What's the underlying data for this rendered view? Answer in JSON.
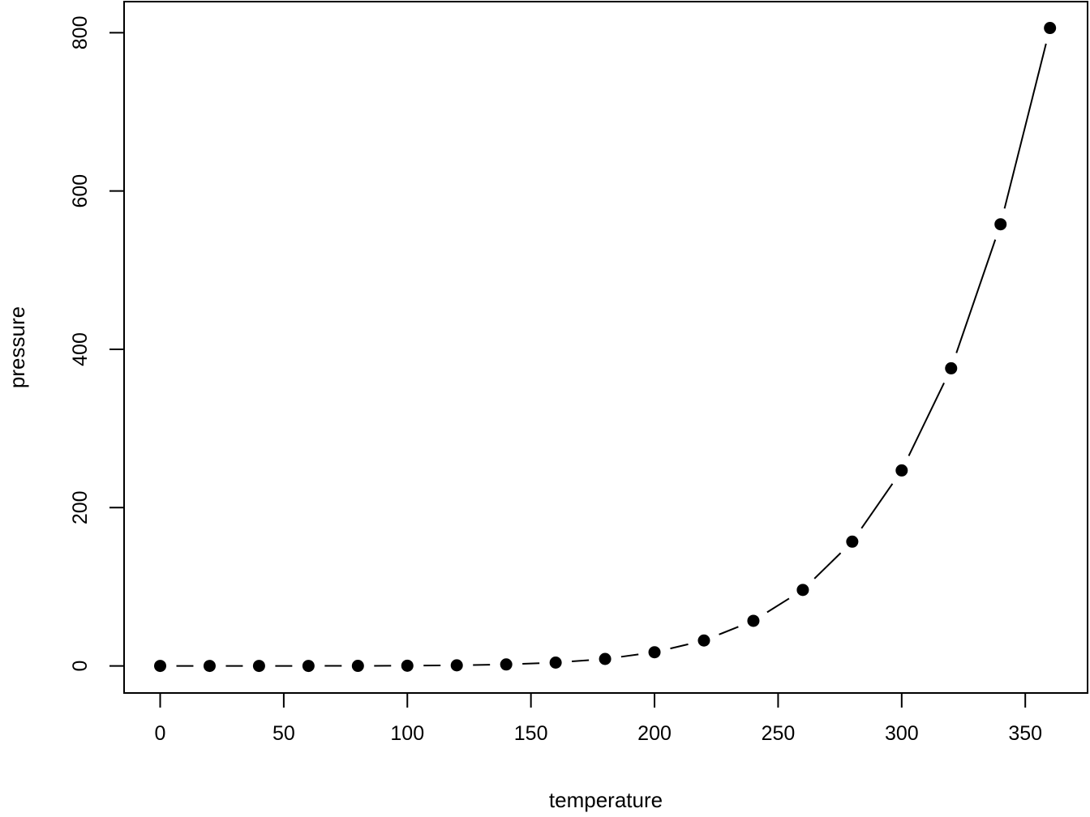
{
  "figure": {
    "background_color": "#ffffff",
    "foreground_color": "#000000",
    "description": "Scatter-line plot (R base graphics style, points joined by trimmed segments)"
  },
  "chart_data": {
    "type": "line",
    "subtype": "points-with-segments",
    "title": "",
    "xlabel": "temperature",
    "ylabel": "pressure",
    "x": [
      0,
      20,
      40,
      60,
      80,
      100,
      120,
      140,
      160,
      180,
      200,
      220,
      240,
      260,
      280,
      300,
      320,
      340,
      360
    ],
    "y": [
      0.0002,
      0.0012,
      0.006,
      0.03,
      0.09,
      0.27,
      0.75,
      1.85,
      4.2,
      8.8,
      17.3,
      32.1,
      57.0,
      96.0,
      157.0,
      247.0,
      376.0,
      558.0,
      806.0
    ],
    "x_ticks": [
      0,
      50,
      100,
      150,
      200,
      250,
      300,
      350
    ],
    "x_tick_labels": [
      "0",
      "50",
      "100",
      "150",
      "200",
      "250",
      "300",
      "350"
    ],
    "y_ticks": [
      0,
      200,
      400,
      600,
      800
    ],
    "y_tick_labels": [
      "0",
      "200",
      "400",
      "600",
      "800"
    ],
    "xlim": [
      -14.6,
      375.2
    ],
    "ylim": [
      -34.2,
      839.3
    ],
    "grid": false,
    "legend": "none",
    "marker": "filled-circle",
    "marker_color": "#000000",
    "line_color": "#000000"
  }
}
